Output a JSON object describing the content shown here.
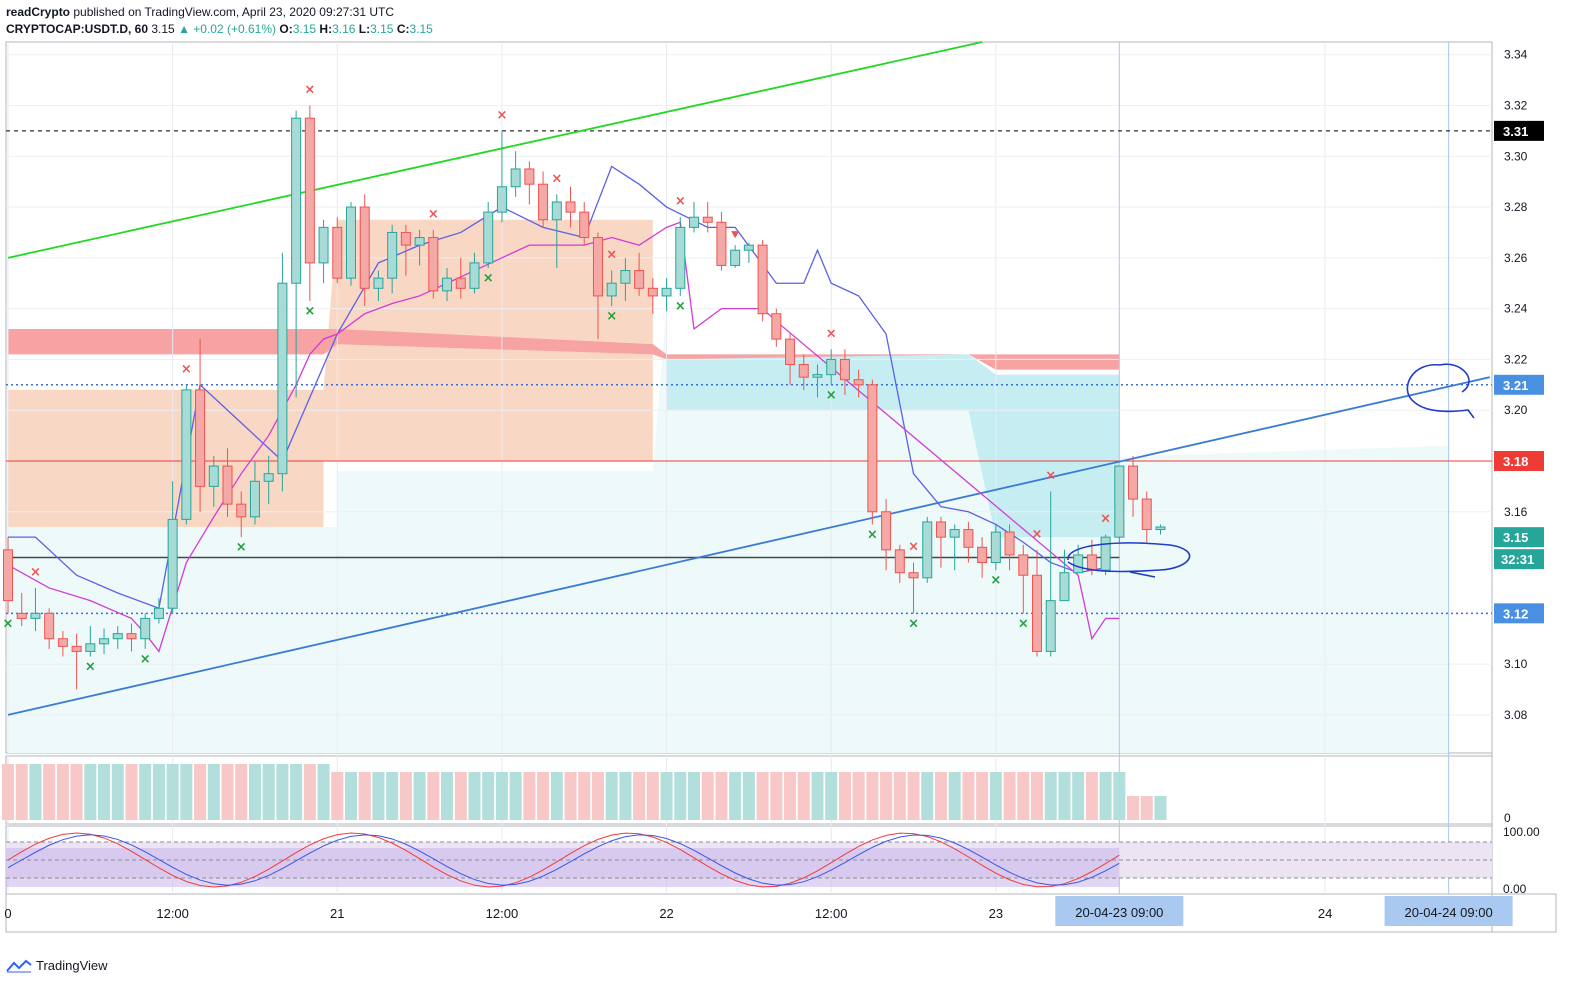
{
  "header": {
    "author": "readCrypto",
    "published_text": "published on TradingView.com, April 23, 2020 09:27:31 UTC",
    "symbol": "CRYPTOCAP:USDT.D, 60",
    "last": "3.15",
    "change": "▲ +0.02 (+0.61%)",
    "o_label": "O:",
    "o_value": "3.15",
    "h_label": "H:",
    "h_value": "3.16",
    "l_label": "L:",
    "l_value": "3.15",
    "c_label": "C:",
    "c_value": "3.15"
  },
  "footer": {
    "brand": "TradingView"
  },
  "colors": {
    "up": "#26a69a",
    "down": "#ef5350",
    "up_fill": "#a8dbd5",
    "down_fill": "#f5a9a6",
    "trend_green": "#21d921",
    "trend_blue": "#3a7bd5",
    "blue_line": "#5b61e6",
    "magenta_line": "#d33bd6",
    "label_blue": "#4a90e2",
    "label_red": "#ef3b36",
    "label_black": "#000000",
    "annotation": "#1f3cc8"
  },
  "chart_data": {
    "type": "candlestick",
    "y_range": [
      3.065,
      3.345
    ],
    "y_ticks": [
      "3.34",
      "3.32",
      "3.30",
      "3.28",
      "3.26",
      "3.24",
      "3.22",
      "3.20",
      "3.16",
      "3.10",
      "3.08"
    ],
    "price_labels": [
      {
        "value": 3.31,
        "text": "3.31",
        "style": "black"
      },
      {
        "value": 3.21,
        "text": "3.21",
        "style": "blue"
      },
      {
        "value": 3.18,
        "text": "3.18",
        "style": "red"
      },
      {
        "value": 3.15,
        "text": "3.15",
        "style": "green"
      },
      {
        "value": 3.12,
        "text": "3.12",
        "style": "blue"
      }
    ],
    "countdown": "32:31",
    "x_ticks": [
      "0",
      "12:00",
      "21",
      "12:00",
      "22",
      "12:00",
      "23",
      "24"
    ],
    "x_tick_candle_index": [
      0,
      12,
      24,
      36,
      48,
      60,
      72,
      96
    ],
    "x_highlight_labels": [
      {
        "text": "20-04-23   09:00",
        "candle_index": 81
      },
      {
        "text": "20-04-24   09:00",
        "candle_index": 105
      }
    ],
    "horizontal_lines": [
      {
        "value": 3.31,
        "style": "dashed-black"
      },
      {
        "value": 3.21,
        "style": "dotted-blue"
      },
      {
        "value": 3.18,
        "style": "solid-red"
      },
      {
        "value": 3.142,
        "style": "solid-dark"
      },
      {
        "value": 3.12,
        "style": "dotted-blue"
      }
    ],
    "trend_lines": [
      {
        "color": "green",
        "from": [
          0,
          3.26
        ],
        "to": [
          71,
          3.345
        ]
      },
      {
        "color": "blue",
        "from": [
          0,
          3.08
        ],
        "to": [
          108,
          3.213
        ]
      }
    ],
    "candles": [
      [
        3.145,
        3.125,
        3.15,
        3.12
      ],
      [
        3.12,
        3.118,
        3.128,
        3.115
      ],
      [
        3.118,
        3.12,
        3.13,
        3.113
      ],
      [
        3.12,
        3.11,
        3.122,
        3.106
      ],
      [
        3.11,
        3.107,
        3.113,
        3.103
      ],
      [
        3.107,
        3.105,
        3.112,
        3.09
      ],
      [
        3.105,
        3.108,
        3.115,
        3.103
      ],
      [
        3.108,
        3.11,
        3.114,
        3.104
      ],
      [
        3.11,
        3.112,
        3.115,
        3.106
      ],
      [
        3.112,
        3.11,
        3.116,
        3.105
      ],
      [
        3.11,
        3.118,
        3.12,
        3.106
      ],
      [
        3.118,
        3.122,
        3.126,
        3.116
      ],
      [
        3.122,
        3.157,
        3.172,
        3.12
      ],
      [
        3.157,
        3.208,
        3.21,
        3.155
      ],
      [
        3.208,
        3.17,
        3.228,
        3.16
      ],
      [
        3.17,
        3.178,
        3.182,
        3.162
      ],
      [
        3.178,
        3.163,
        3.185,
        3.158
      ],
      [
        3.163,
        3.158,
        3.168,
        3.15
      ],
      [
        3.158,
        3.172,
        3.18,
        3.155
      ],
      [
        3.172,
        3.175,
        3.182,
        3.163
      ],
      [
        3.175,
        3.25,
        3.262,
        3.168
      ],
      [
        3.25,
        3.315,
        3.318,
        3.205
      ],
      [
        3.315,
        3.258,
        3.32,
        3.243
      ],
      [
        3.258,
        3.272,
        3.275,
        3.25
      ],
      [
        3.272,
        3.252,
        3.276,
        3.25
      ],
      [
        3.252,
        3.28,
        3.282,
        3.249
      ],
      [
        3.28,
        3.248,
        3.285,
        3.241
      ],
      [
        3.248,
        3.252,
        3.255,
        3.243
      ],
      [
        3.252,
        3.27,
        3.273,
        3.246
      ],
      [
        3.27,
        3.265,
        3.273,
        3.253
      ],
      [
        3.265,
        3.268,
        3.271,
        3.257
      ],
      [
        3.268,
        3.247,
        3.271,
        3.244
      ],
      [
        3.247,
        3.252,
        3.256,
        3.243
      ],
      [
        3.252,
        3.248,
        3.26,
        3.244
      ],
      [
        3.248,
        3.258,
        3.262,
        3.246
      ],
      [
        3.258,
        3.278,
        3.282,
        3.256
      ],
      [
        3.278,
        3.288,
        3.31,
        3.274
      ],
      [
        3.288,
        3.295,
        3.302,
        3.284
      ],
      [
        3.295,
        3.289,
        3.298,
        3.281
      ],
      [
        3.289,
        3.275,
        3.294,
        3.272
      ],
      [
        3.275,
        3.282,
        3.285,
        3.256
      ],
      [
        3.282,
        3.278,
        3.288,
        3.272
      ],
      [
        3.278,
        3.268,
        3.282,
        3.265
      ],
      [
        3.268,
        3.245,
        3.27,
        3.228
      ],
      [
        3.245,
        3.25,
        3.255,
        3.241
      ],
      [
        3.25,
        3.255,
        3.26,
        3.243
      ],
      [
        3.255,
        3.248,
        3.262,
        3.245
      ],
      [
        3.248,
        3.245,
        3.252,
        3.238
      ],
      [
        3.245,
        3.248,
        3.252,
        3.239
      ],
      [
        3.248,
        3.272,
        3.276,
        3.245
      ],
      [
        3.272,
        3.276,
        3.282,
        3.27
      ],
      [
        3.276,
        3.274,
        3.282,
        3.27
      ],
      [
        3.274,
        3.257,
        3.278,
        3.255
      ],
      [
        3.257,
        3.263,
        3.265,
        3.256
      ],
      [
        3.263,
        3.265,
        3.266,
        3.258
      ],
      [
        3.265,
        3.238,
        3.267,
        3.235
      ],
      [
        3.238,
        3.228,
        3.24,
        3.225
      ],
      [
        3.228,
        3.218,
        3.23,
        3.21
      ],
      [
        3.218,
        3.213,
        3.222,
        3.208
      ],
      [
        3.213,
        3.214,
        3.218,
        3.205
      ],
      [
        3.214,
        3.22,
        3.224,
        3.21
      ],
      [
        3.22,
        3.212,
        3.224,
        3.206
      ],
      [
        3.212,
        3.21,
        3.216,
        3.205
      ],
      [
        3.21,
        3.16,
        3.212,
        3.155
      ],
      [
        3.16,
        3.145,
        3.165,
        3.137
      ],
      [
        3.145,
        3.136,
        3.147,
        3.132
      ],
      [
        3.136,
        3.134,
        3.14,
        3.12
      ],
      [
        3.134,
        3.156,
        3.158,
        3.132
      ],
      [
        3.156,
        3.15,
        3.158,
        3.138
      ],
      [
        3.15,
        3.153,
        3.155,
        3.137
      ],
      [
        3.153,
        3.146,
        3.156,
        3.14
      ],
      [
        3.146,
        3.14,
        3.15,
        3.134
      ],
      [
        3.14,
        3.152,
        3.155,
        3.137
      ],
      [
        3.152,
        3.143,
        3.155,
        3.137
      ],
      [
        3.143,
        3.135,
        3.147,
        3.12
      ],
      [
        3.135,
        3.105,
        3.145,
        3.103
      ],
      [
        3.105,
        3.125,
        3.168,
        3.103
      ],
      [
        3.125,
        3.136,
        3.145,
        3.13
      ],
      [
        3.136,
        3.143,
        3.147,
        3.137
      ],
      [
        3.143,
        3.137,
        3.149,
        3.135
      ],
      [
        3.137,
        3.15,
        3.151,
        3.135
      ],
      [
        3.15,
        3.178,
        3.178,
        3.148
      ],
      [
        3.178,
        3.165,
        3.182,
        3.158
      ],
      [
        3.165,
        3.153,
        3.168,
        3.148
      ],
      [
        3.153,
        3.154,
        3.155,
        3.151
      ]
    ],
    "up_markers": [
      0,
      6,
      10,
      17,
      22,
      35,
      44,
      49,
      60,
      63,
      66,
      72,
      74
    ],
    "down_markers": [
      2,
      13,
      22,
      31,
      36,
      40,
      44,
      49,
      60,
      66,
      75,
      76,
      80
    ],
    "triangle_marker": 53,
    "blue_line": [
      [
        0,
        3.15
      ],
      [
        2,
        3.15
      ],
      [
        5,
        3.135
      ],
      [
        8,
        3.128
      ],
      [
        11,
        3.122
      ],
      [
        14,
        3.21
      ],
      [
        17,
        3.195
      ],
      [
        20,
        3.18
      ],
      [
        22,
        3.205
      ],
      [
        24,
        3.23
      ],
      [
        27,
        3.258
      ],
      [
        30,
        3.265
      ],
      [
        33,
        3.27
      ],
      [
        36,
        3.28
      ],
      [
        39,
        3.272
      ],
      [
        42,
        3.268
      ],
      [
        44,
        3.296
      ],
      [
        46,
        3.289
      ],
      [
        48,
        3.28
      ],
      [
        51,
        3.272
      ],
      [
        53,
        3.272
      ],
      [
        56,
        3.25
      ],
      [
        57,
        3.25
      ],
      [
        58,
        3.25
      ],
      [
        59,
        3.263
      ],
      [
        60,
        3.25
      ],
      [
        62,
        3.245
      ],
      [
        64,
        3.23
      ],
      [
        66,
        3.175
      ],
      [
        68,
        3.162
      ],
      [
        70,
        3.16
      ],
      [
        72,
        3.155
      ],
      [
        74,
        3.148
      ],
      [
        76,
        3.14
      ],
      [
        78,
        3.136
      ],
      [
        80,
        3.138
      ]
    ],
    "magenta_line": [
      [
        0,
        3.139
      ],
      [
        3,
        3.13
      ],
      [
        6,
        3.125
      ],
      [
        9,
        3.118
      ],
      [
        10,
        3.112
      ],
      [
        11,
        3.105
      ],
      [
        13,
        3.14
      ],
      [
        15,
        3.158
      ],
      [
        17,
        3.175
      ],
      [
        19,
        3.19
      ],
      [
        21,
        3.21
      ],
      [
        22,
        3.222
      ],
      [
        23,
        3.228
      ],
      [
        24,
        3.23
      ],
      [
        26,
        3.238
      ],
      [
        28,
        3.242
      ],
      [
        30,
        3.245
      ],
      [
        32,
        3.25
      ],
      [
        34,
        3.255
      ],
      [
        36,
        3.26
      ],
      [
        38,
        3.265
      ],
      [
        40,
        3.265
      ],
      [
        42,
        3.265
      ],
      [
        44,
        3.268
      ],
      [
        46,
        3.265
      ],
      [
        48,
        3.272
      ],
      [
        49,
        3.274
      ],
      [
        50,
        3.232
      ],
      [
        52,
        3.24
      ],
      [
        54,
        3.24
      ],
      [
        55,
        3.24
      ],
      [
        56,
        3.235
      ],
      [
        78,
        3.135
      ],
      [
        79,
        3.11
      ],
      [
        80,
        3.118
      ],
      [
        81,
        3.118
      ]
    ],
    "cloud_red_band": {
      "start": 0,
      "end": 81,
      "top": [
        3.232,
        3.232,
        3.232,
        3.232,
        3.225,
        3.225
      ],
      "bottom": [
        3.222,
        3.222,
        3.222,
        3.222,
        3.215,
        3.215
      ]
    },
    "volume": [
      [
        0,
        "down"
      ],
      [
        1,
        "down"
      ],
      [
        2,
        "up"
      ],
      [
        3,
        "down"
      ],
      [
        4,
        "down"
      ],
      [
        5,
        "down"
      ],
      [
        6,
        "up"
      ],
      [
        7,
        "down"
      ],
      [
        8,
        "down"
      ],
      [
        9,
        "up"
      ],
      [
        10,
        "up"
      ],
      [
        11,
        "down"
      ],
      [
        12,
        "up"
      ],
      [
        13,
        "down"
      ],
      [
        14,
        "down"
      ],
      [
        15,
        "down"
      ],
      [
        16,
        "down"
      ],
      [
        17,
        "up"
      ],
      [
        18,
        "down"
      ],
      [
        19,
        "up"
      ],
      [
        20,
        "down"
      ],
      [
        21,
        "up"
      ],
      [
        22,
        "down"
      ],
      [
        23,
        "up"
      ],
      [
        24,
        "down"
      ]
    ],
    "oscillator_ticks": [
      "100.00",
      "0.00"
    ]
  }
}
